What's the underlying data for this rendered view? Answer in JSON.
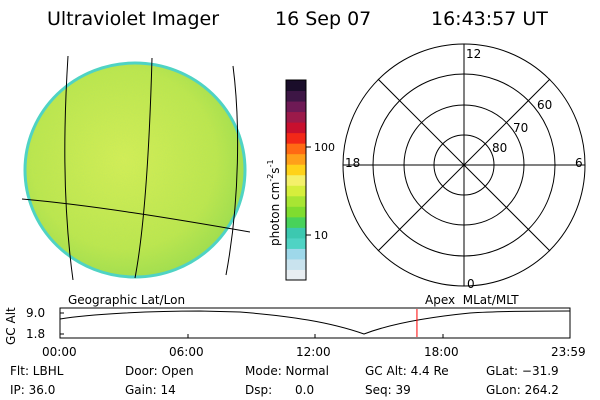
{
  "header": {
    "instrument": "Ultraviolet Imager",
    "date": "16 Sep 07",
    "time": "16:43:57 UT"
  },
  "colors": {
    "disk_fill": "#c2e64a",
    "disk_edge": "#4fd3c4",
    "marker": "#ff0000"
  },
  "colorbar": {
    "unit_parts": [
      "photon cm",
      "-2",
      "s",
      "-1"
    ],
    "ticks": [
      "100",
      "10"
    ],
    "colors": [
      "#e8eef2",
      "#c9e3ee",
      "#9ed8ea",
      "#4fd3c4",
      "#3cc8b0",
      "#48d25a",
      "#7fdc2f",
      "#a8e533",
      "#d6ee3c",
      "#f4f06a",
      "#ffd21a",
      "#ffa01a",
      "#ff6a14",
      "#f22818",
      "#c8102e",
      "#9c1a4a",
      "#6e1a55",
      "#3d1645",
      "#1a0d2a"
    ]
  },
  "geo_panel": {
    "label": "Geographic Lat/Lon"
  },
  "polar_panel": {
    "label": "Apex  MLat/MLT",
    "lat_labels": [
      "60",
      "70",
      "80"
    ],
    "hour_labels": {
      "top": "12",
      "left": "18",
      "right": "6",
      "bottom": "0"
    }
  },
  "altitude_plot": {
    "ylabel": "GC Alt",
    "y_ticks": [
      "9.0",
      "1.8"
    ],
    "x_ticks": [
      "00:00",
      "06:00",
      "12:00",
      "18:00",
      "23:59"
    ],
    "marker_fraction": 0.6999
  },
  "status": {
    "flt": "Flt: LBHL",
    "ip": "IP: 36.0",
    "door": "Door: Open",
    "gain": "Gain: 14",
    "mode": "Mode: Normal",
    "dsp": "Dsp:      0.0",
    "gc_alt": "GC Alt: 4.4 Re",
    "seq": "Seq: 39",
    "glat": "GLat: −31.9",
    "glon": "GLon: 264.2"
  }
}
